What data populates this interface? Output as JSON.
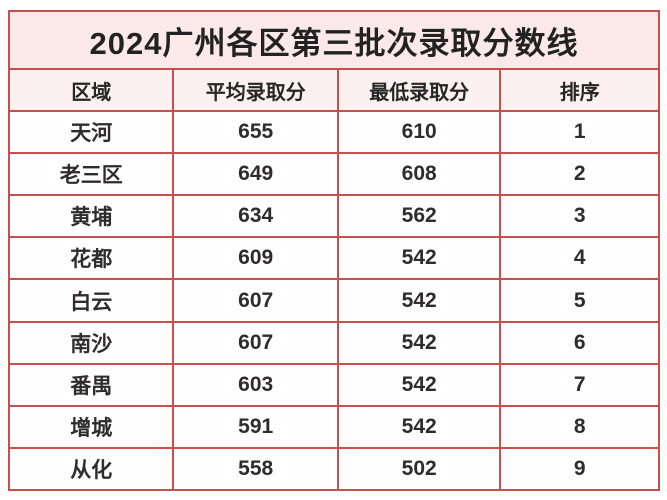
{
  "title": "2024广州各区第三批次录取分数线",
  "colors": {
    "grid_line": "#c94f4d",
    "title_background": "#fbe9e9",
    "header_background": "#fdf0f0",
    "row_background": "#fffdfd",
    "text": "#2d2d2d",
    "page_background": "#ffffff"
  },
  "table": {
    "headers": [
      "区域",
      "平均录取分",
      "最低录取分",
      "排序"
    ],
    "rows": [
      [
        "天河",
        "655",
        "610",
        "1"
      ],
      [
        "老三区",
        "649",
        "608",
        "2"
      ],
      [
        "黄埔",
        "634",
        "562",
        "3"
      ],
      [
        "花都",
        "609",
        "542",
        "4"
      ],
      [
        "白云",
        "607",
        "542",
        "5"
      ],
      [
        "南沙",
        "607",
        "542",
        "6"
      ],
      [
        "番禺",
        "603",
        "542",
        "7"
      ],
      [
        "增城",
        "591",
        "542",
        "8"
      ],
      [
        "从化",
        "558",
        "502",
        "9"
      ]
    ]
  },
  "chart_data": {
    "type": "table",
    "title": "2024广州各区第三批次录取分数线",
    "columns": [
      "区域",
      "平均录取分",
      "最低录取分",
      "排序"
    ],
    "rows": [
      {
        "区域": "天河",
        "平均录取分": 655,
        "最低录取分": 610,
        "排序": 1
      },
      {
        "区域": "老三区",
        "平均录取分": 649,
        "最低录取分": 608,
        "排序": 2
      },
      {
        "区域": "黄埔",
        "平均录取分": 634,
        "最低录取分": 562,
        "排序": 3
      },
      {
        "区域": "花都",
        "平均录取分": 609,
        "最低录取分": 542,
        "排序": 4
      },
      {
        "区域": "白云",
        "平均录取分": 607,
        "最低录取分": 542,
        "排序": 5
      },
      {
        "区域": "南沙",
        "平均录取分": 607,
        "最低录取分": 542,
        "排序": 6
      },
      {
        "区域": "番禺",
        "平均录取分": 603,
        "最低录取分": 542,
        "排序": 7
      },
      {
        "区域": "增城",
        "平均录取分": 591,
        "最低录取分": 542,
        "排序": 8
      },
      {
        "区域": "从化",
        "平均录取分": 558,
        "最低录取分": 502,
        "排序": 9
      }
    ]
  }
}
